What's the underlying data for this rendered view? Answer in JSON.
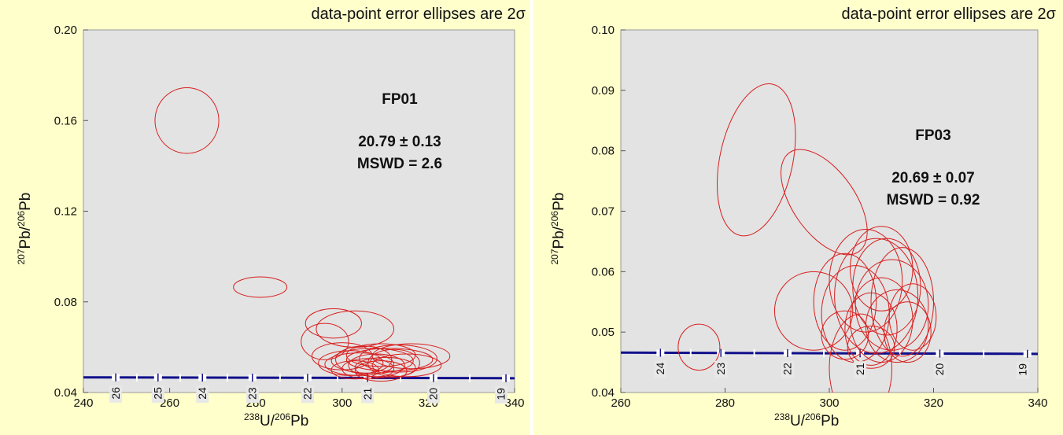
{
  "chart_data": [
    {
      "type": "scatter",
      "title": "FP01",
      "header_note": "data-point error ellipses are 2σ",
      "age_line": "20.79 ± 0.13",
      "mswd_line": "MSWD = 2.6",
      "xlabel_parts": [
        "238",
        "U/",
        "206",
        "Pb"
      ],
      "ylabel_parts": [
        "207",
        "Pb/",
        "206",
        "Pb"
      ],
      "xlim": [
        240,
        340
      ],
      "ylim": [
        0.04,
        0.2
      ],
      "xticks": [
        "240",
        "260",
        "280",
        "300",
        "320",
        "340"
      ],
      "yticks": [
        "0.04",
        "0.08",
        "0.12",
        "0.16",
        "0.20"
      ],
      "concordia_age_labels": [
        "19",
        "20",
        "21",
        "22",
        "23",
        "24",
        "25",
        "26"
      ],
      "colors": {
        "background": "#ffffcc",
        "plot_area": "#e3e3e3",
        "ellipse": "#d81e1e",
        "concordia": "#10108c"
      },
      "concordia": {
        "y_start": 0.0467,
        "y_end": 0.0463,
        "age_markers": [
          {
            "age": 26,
            "x": 247.5
          },
          {
            "age": 25,
            "x": 257.3
          },
          {
            "age": 24,
            "x": 267.6
          },
          {
            "age": 23,
            "x": 279.2
          },
          {
            "age": 22,
            "x": 292.0
          },
          {
            "age": 21,
            "x": 305.9
          },
          {
            "age": 20,
            "x": 321.2
          },
          {
            "age": 19,
            "x": 338.0
          }
        ]
      },
      "ellipses": [
        {
          "cx": 264,
          "cy": 0.16,
          "rx": 7.4,
          "ry": 0.0145
        },
        {
          "cx": 281,
          "cy": 0.0865,
          "rx": 6.2,
          "ry": 0.0045
        },
        {
          "cx": 298,
          "cy": 0.0705,
          "rx": 6.5,
          "ry": 0.0065
        },
        {
          "cx": 303,
          "cy": 0.068,
          "rx": 9.0,
          "ry": 0.008
        },
        {
          "cx": 296,
          "cy": 0.0625,
          "rx": 5.5,
          "ry": 0.008
        },
        {
          "cx": 300,
          "cy": 0.056,
          "rx": 7.0,
          "ry": 0.006
        },
        {
          "cx": 302,
          "cy": 0.053,
          "rx": 7.5,
          "ry": 0.0055
        },
        {
          "cx": 304,
          "cy": 0.0525,
          "rx": 8.0,
          "ry": 0.005
        },
        {
          "cx": 305,
          "cy": 0.0545,
          "rx": 6.5,
          "ry": 0.006
        },
        {
          "cx": 306,
          "cy": 0.0505,
          "rx": 6.0,
          "ry": 0.0045
        },
        {
          "cx": 307,
          "cy": 0.054,
          "rx": 9.5,
          "ry": 0.0055
        },
        {
          "cx": 308,
          "cy": 0.052,
          "rx": 6.5,
          "ry": 0.005
        },
        {
          "cx": 309,
          "cy": 0.0565,
          "rx": 8.0,
          "ry": 0.005
        },
        {
          "cx": 310,
          "cy": 0.051,
          "rx": 7.0,
          "ry": 0.0045
        },
        {
          "cx": 311,
          "cy": 0.0545,
          "rx": 10.0,
          "ry": 0.005
        },
        {
          "cx": 312,
          "cy": 0.053,
          "rx": 6.0,
          "ry": 0.006
        },
        {
          "cx": 313,
          "cy": 0.055,
          "rx": 9.0,
          "ry": 0.006
        },
        {
          "cx": 315,
          "cy": 0.052,
          "rx": 8.0,
          "ry": 0.005
        },
        {
          "cx": 316,
          "cy": 0.056,
          "rx": 9.0,
          "ry": 0.0055
        },
        {
          "cx": 303,
          "cy": 0.05,
          "rx": 5.5,
          "ry": 0.004
        },
        {
          "cx": 309,
          "cy": 0.0495,
          "rx": 6.0,
          "ry": 0.0045
        }
      ]
    },
    {
      "type": "scatter",
      "title": "FP03",
      "header_note": "data-point error ellipses are 2σ",
      "age_line": "20.69 ± 0.07",
      "mswd_line": "MSWD = 0.92",
      "xlabel_parts": [
        "238",
        "U/",
        "206",
        "Pb"
      ],
      "ylabel_parts": [
        "207",
        "Pb/",
        "206",
        "Pb"
      ],
      "xlim": [
        260,
        340
      ],
      "ylim": [
        0.04,
        0.1
      ],
      "xticks": [
        "260",
        "280",
        "300",
        "320",
        "340"
      ],
      "yticks": [
        "0.04",
        "0.05",
        "0.06",
        "0.07",
        "0.08",
        "0.09",
        "0.10"
      ],
      "concordia_age_labels": [
        "19",
        "20",
        "21",
        "22",
        "23",
        "24"
      ],
      "colors": {
        "background": "#ffffcc",
        "plot_area": "#e3e3e3",
        "ellipse": "#d81e1e",
        "concordia": "#10108c"
      },
      "concordia": {
        "y_start": 0.0466,
        "y_end": 0.0464,
        "age_markers": [
          {
            "age": 24,
            "x": 267.6
          },
          {
            "age": 23,
            "x": 279.2
          },
          {
            "age": 22,
            "x": 292.0
          },
          {
            "age": 21,
            "x": 305.9
          },
          {
            "age": 20,
            "x": 321.2
          },
          {
            "age": 19,
            "x": 338.0
          }
        ]
      },
      "ellipses": [
        {
          "cx": 286,
          "cy": 0.0785,
          "rx": 7.0,
          "ry": 0.0128,
          "rot": 12
        },
        {
          "cx": 299,
          "cy": 0.0715,
          "rx": 6.0,
          "ry": 0.01,
          "rot": -35
        },
        {
          "cx": 275,
          "cy": 0.0475,
          "rx": 4.0,
          "ry": 0.0038
        },
        {
          "cx": 297,
          "cy": 0.0535,
          "rx": 7.5,
          "ry": 0.0065
        },
        {
          "cx": 303,
          "cy": 0.055,
          "rx": 6.0,
          "ry": 0.008
        },
        {
          "cx": 305,
          "cy": 0.053,
          "rx": 6.5,
          "ry": 0.008
        },
        {
          "cx": 306,
          "cy": 0.044,
          "rx": 6.0,
          "ry": 0.009
        },
        {
          "cx": 307,
          "cy": 0.0585,
          "rx": 7.0,
          "ry": 0.0085
        },
        {
          "cx": 308,
          "cy": 0.0505,
          "rx": 5.0,
          "ry": 0.006
        },
        {
          "cx": 309,
          "cy": 0.056,
          "rx": 8.0,
          "ry": 0.0095
        },
        {
          "cx": 310,
          "cy": 0.052,
          "rx": 6.0,
          "ry": 0.007
        },
        {
          "cx": 311,
          "cy": 0.0575,
          "rx": 6.5,
          "ry": 0.008
        },
        {
          "cx": 312,
          "cy": 0.0545,
          "rx": 7.0,
          "ry": 0.0075
        },
        {
          "cx": 313,
          "cy": 0.051,
          "rx": 6.0,
          "ry": 0.006
        },
        {
          "cx": 314,
          "cy": 0.055,
          "rx": 6.0,
          "ry": 0.009
        },
        {
          "cx": 315,
          "cy": 0.05,
          "rx": 4.5,
          "ry": 0.005
        },
        {
          "cx": 316,
          "cy": 0.0525,
          "rx": 4.5,
          "ry": 0.0055
        },
        {
          "cx": 308,
          "cy": 0.0475,
          "rx": 4.5,
          "ry": 0.0035
        },
        {
          "cx": 303,
          "cy": 0.0495,
          "rx": 4.5,
          "ry": 0.004
        },
        {
          "cx": 310,
          "cy": 0.0605,
          "rx": 6.0,
          "ry": 0.007
        }
      ]
    }
  ]
}
